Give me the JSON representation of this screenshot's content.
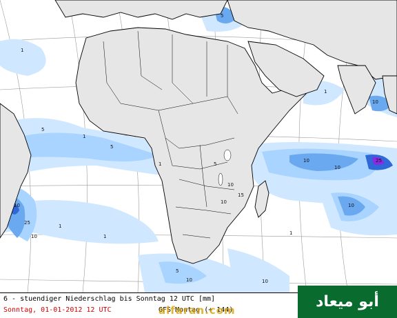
{
  "map": {
    "caption_line1": "6 - stuendiger Niederschlag bis Sonntag 12 UTC [mm]",
    "caption_date": "Sonntag, 01-01-2012  12 UTC",
    "caption_run": "GFS   Montag (+ 144)",
    "watermark": "alfaran.com",
    "colors": {
      "ocean": "#ffffff",
      "land": "#e6e6e6",
      "border": "#000000",
      "grid": "#9a9a9a",
      "precip_light": "#cfe8ff",
      "precip_1": "#a9d4ff",
      "precip_5": "#6aa8f0",
      "precip_10": "#2f68d8",
      "precip_25": "#8a2be2"
    },
    "contour_labels": [
      "1",
      "5",
      "10",
      "15",
      "25"
    ]
  },
  "badge": {
    "text": "أبو ميعاد",
    "color": "#0a6b2e"
  }
}
